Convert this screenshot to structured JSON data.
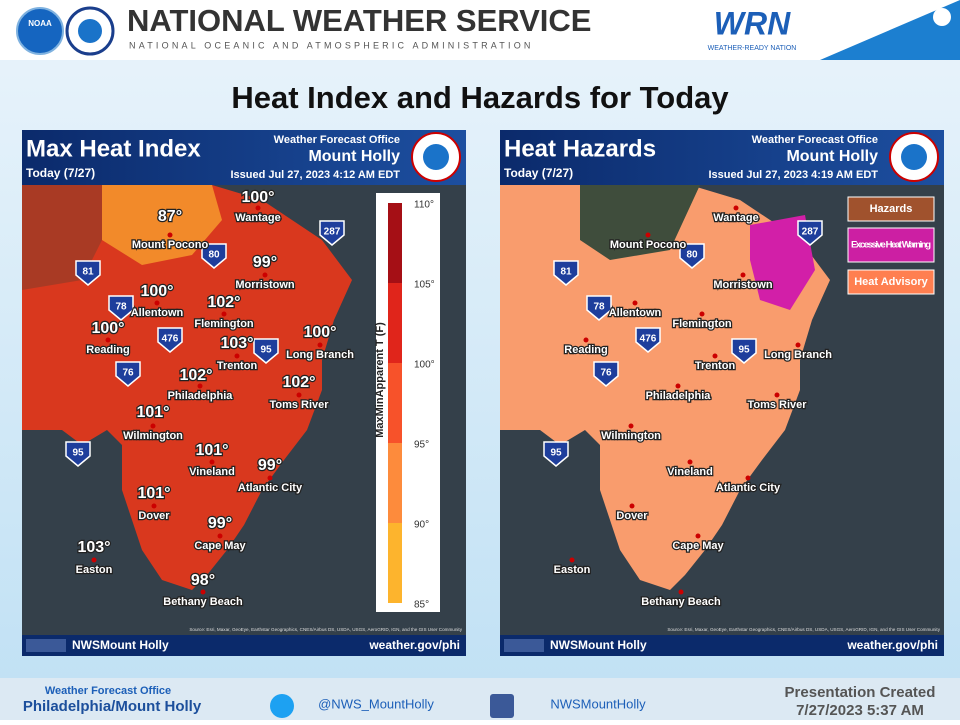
{
  "header": {
    "noaa": "NOAA",
    "title": "NATIONAL WEATHER SERVICE",
    "subtitle": "NATIONAL OCEANIC AND ATMOSPHERIC ADMINISTRATION",
    "wrn": "WRN",
    "wrn_sub": "WEATHER-READY NATION"
  },
  "slide_title": "Heat Index and Hazards for Today",
  "maps": [
    {
      "title": "Max Heat Index",
      "date": "Today (7/27)",
      "office_label": "Weather Forecast Office",
      "office": "Mount Holly",
      "issued": "Issued Jul 27, 2023 4:12 AM EDT",
      "legend_title": "MaxMinApparent T (F)",
      "legend_ticks": [
        "110°",
        "105°",
        "100°",
        "95°",
        "90°",
        "85°"
      ],
      "places": [
        {
          "name": "Mount Pocono",
          "value": "87°"
        },
        {
          "name": "Wantage",
          "value": "100°"
        },
        {
          "name": "Morristown",
          "value": "99°"
        },
        {
          "name": "Allentown",
          "value": "100°"
        },
        {
          "name": "Flemington",
          "value": "102°"
        },
        {
          "name": "Reading",
          "value": "100°"
        },
        {
          "name": "Trenton",
          "value": "103°"
        },
        {
          "name": "Long Branch",
          "value": "100°"
        },
        {
          "name": "Philadelphia",
          "value": "102°"
        },
        {
          "name": "Toms River",
          "value": "102°"
        },
        {
          "name": "Wilmington",
          "value": "101°"
        },
        {
          "name": "Vineland",
          "value": "101°"
        },
        {
          "name": "Atlantic City",
          "value": "99°"
        },
        {
          "name": "Dover",
          "value": "101°"
        },
        {
          "name": "Cape May",
          "value": "99°"
        },
        {
          "name": "Easton",
          "value": "103°"
        },
        {
          "name": "Bethany Beach",
          "value": "98°"
        }
      ],
      "highways": [
        "287",
        "80",
        "81",
        "78",
        "476",
        "95",
        "76",
        "95"
      ],
      "source": "Source: Esri, Maxar, GeoEye, Earthstar Geographics, CNES/Airbus DS, USDA, USGS, AeroGRID, IGN, and the GIS User Community",
      "social": "NWSMount Holly",
      "url": "weather.gov/phi"
    },
    {
      "title": "Heat Hazards",
      "date": "Today (7/27)",
      "office_label": "Weather Forecast Office",
      "office": "Mount Holly",
      "issued": "Issued Jul 27, 2023 4:19 AM EDT",
      "legend": [
        "Hazards",
        "Excessive Heat Warning",
        "Heat Advisory"
      ],
      "places": [
        {
          "name": "Mount Pocono"
        },
        {
          "name": "Wantage"
        },
        {
          "name": "Morristown"
        },
        {
          "name": "Allentown"
        },
        {
          "name": "Flemington"
        },
        {
          "name": "Reading"
        },
        {
          "name": "Trenton"
        },
        {
          "name": "Long Branch"
        },
        {
          "name": "Philadelphia"
        },
        {
          "name": "Toms River"
        },
        {
          "name": "Wilmington"
        },
        {
          "name": "Vineland"
        },
        {
          "name": "Atlantic City"
        },
        {
          "name": "Dover"
        },
        {
          "name": "Cape May"
        },
        {
          "name": "Easton"
        },
        {
          "name": "Bethany Beach"
        }
      ],
      "highways": [
        "287",
        "80",
        "81",
        "78",
        "476",
        "95",
        "76",
        "95"
      ],
      "source": "Source: Esri, Maxar, GeoEye, Earthstar Geographics, CNES/Airbus DS, USDA, USGS, AeroGRID, IGN, and the GIS User Community",
      "social": "NWSMount Holly",
      "url": "weather.gov/phi"
    }
  ],
  "footer": {
    "office_label": "Weather Forecast Office",
    "office": "Philadelphia/Mount Holly",
    "twitter": "@NWS_MountHolly",
    "facebook": "NWSMountHolly",
    "created_label": "Presentation Created",
    "created": "7/27/2023 5:37 AM"
  }
}
